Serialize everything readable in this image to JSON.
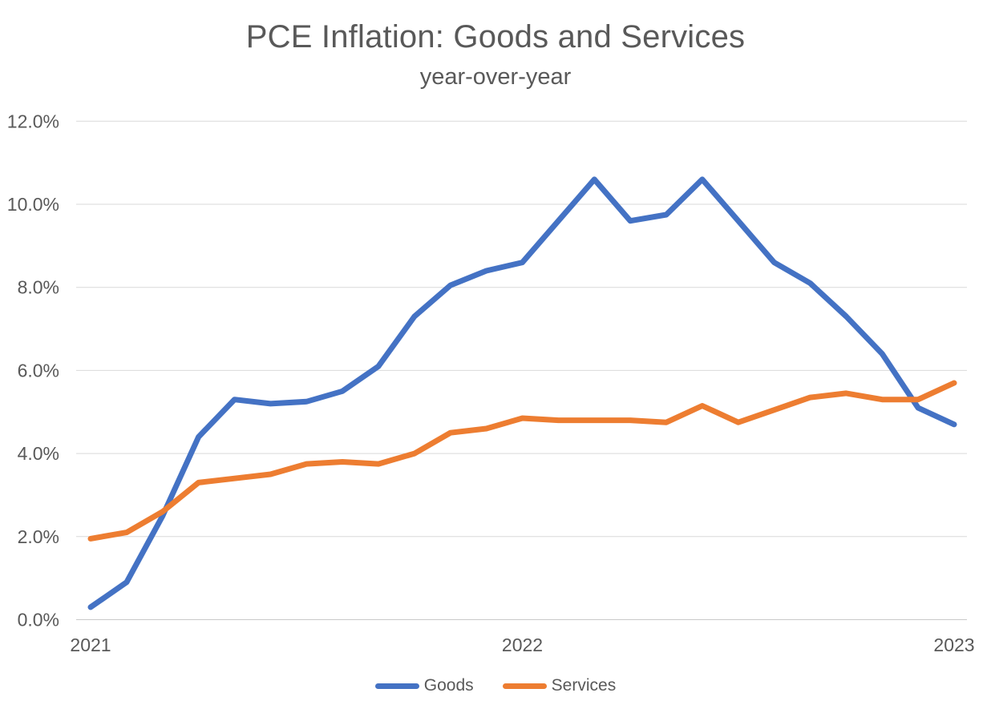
{
  "chart_data": {
    "type": "line",
    "title": "PCE Inflation: Goods and Services",
    "subtitle": "year-over-year",
    "x": [
      "Jan 2021",
      "Feb 2021",
      "Mar 2021",
      "Apr 2021",
      "May 2021",
      "Jun 2021",
      "Jul 2021",
      "Aug 2021",
      "Sep 2021",
      "Oct 2021",
      "Nov 2021",
      "Dec 2021",
      "Jan 2022",
      "Feb 2022",
      "Mar 2022",
      "Apr 2022",
      "May 2022",
      "Jun 2022",
      "Jul 2022",
      "Aug 2022",
      "Sep 2022",
      "Oct 2022",
      "Nov 2022",
      "Dec 2022",
      "Jan 2023"
    ],
    "series": [
      {
        "name": "Goods",
        "color": "#4472C4",
        "values": [
          0.3,
          0.9,
          2.5,
          4.4,
          5.3,
          5.2,
          5.25,
          5.5,
          6.1,
          7.3,
          8.05,
          8.4,
          8.6,
          9.6,
          10.6,
          9.6,
          9.75,
          10.6,
          9.6,
          8.6,
          8.1,
          7.3,
          6.4,
          5.1,
          4.7
        ]
      },
      {
        "name": "Services",
        "color": "#ED7D31",
        "values": [
          1.95,
          2.1,
          2.6,
          3.3,
          3.4,
          3.5,
          3.75,
          3.8,
          3.75,
          4.0,
          4.5,
          4.6,
          4.85,
          4.8,
          4.8,
          4.8,
          4.75,
          5.15,
          4.75,
          5.05,
          5.35,
          5.45,
          5.3,
          5.3,
          5.7
        ]
      }
    ],
    "ylim": [
      0,
      12
    ],
    "y_unit": "percent",
    "yticks": [
      "0.0%",
      "2.0%",
      "4.0%",
      "6.0%",
      "8.0%",
      "10.0%",
      "12.0%"
    ],
    "xticks": [
      {
        "label": "2021",
        "month_index": 0
      },
      {
        "label": "2022",
        "month_index": 12
      },
      {
        "label": "2023",
        "month_index": 24
      }
    ],
    "grid": "horizontal",
    "legend_position": "bottom"
  },
  "colors": {
    "title_text": "#595959",
    "axis_text": "#595959",
    "gridline": "#D9D9D9",
    "axis_line": "#C9C9C9",
    "background": "#FFFFFF"
  }
}
